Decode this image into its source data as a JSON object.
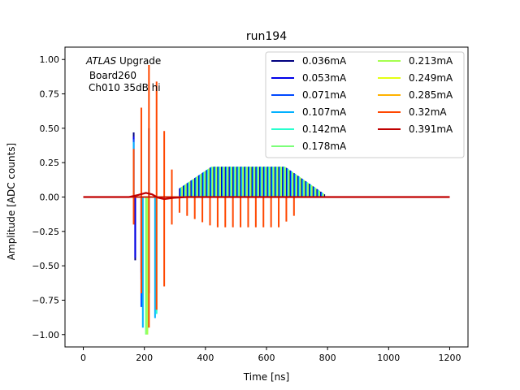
{
  "chart_data": {
    "type": "line",
    "title": "run194",
    "xlabel": "Time [ns]",
    "ylabel": "Amplitude [ADC counts]",
    "xlim": [
      -60,
      1260
    ],
    "ylim": [
      -1.09,
      1.09
    ],
    "xticks": [
      0,
      200,
      400,
      600,
      800,
      1000,
      1200
    ],
    "yticks": [
      -1.0,
      -0.75,
      -0.5,
      -0.25,
      0.0,
      0.25,
      0.5,
      0.75,
      1.0
    ],
    "xtick_labels": [
      "0",
      "200",
      "400",
      "600",
      "800",
      "1000",
      "1200"
    ],
    "ytick_labels": [
      "−1.00",
      "−0.75",
      "−0.50",
      "−0.25",
      "0.00",
      "0.25",
      "0.50",
      "0.75",
      "1.00"
    ],
    "annotation": {
      "line1_italic": "ATLAS",
      "line1_rest": " Upgrade",
      "line2": " Board260",
      "line3": "Ch010 35dB hi"
    },
    "legend": {
      "position": "top-right",
      "columns": 2
    },
    "pulse_train": {
      "period_ns": 25,
      "start_ns": 165,
      "end_ns": 790
    },
    "series": [
      {
        "name": "0.036mA",
        "color": "#00007f",
        "negative_spikes": [
          [
            170,
            -0.46
          ],
          [
            190,
            -0.55
          ]
        ],
        "positive_spikes": [
          [
            165,
            0.47
          ],
          [
            215,
            0.5
          ]
        ]
      },
      {
        "name": "0.053mA",
        "color": "#0000e8",
        "negative_spikes": [
          [
            170,
            -0.44
          ],
          [
            190,
            -0.6
          ]
        ],
        "positive_spikes": [
          [
            165,
            0.44
          ]
        ]
      },
      {
        "name": "0.071mA",
        "color": "#0049ff",
        "negative_spikes": [
          [
            190,
            -0.8
          ],
          [
            215,
            -0.7
          ]
        ],
        "positive_spikes": [
          [
            165,
            0.42
          ]
        ]
      },
      {
        "name": "0.107mA",
        "color": "#00b0ff",
        "negative_spikes": [
          [
            195,
            -0.95
          ],
          [
            235,
            -0.88
          ]
        ],
        "positive_spikes": [
          [
            165,
            0.4
          ]
        ]
      },
      {
        "name": "0.142mA",
        "color": "#28ffce",
        "negative_spikes": [
          [
            210,
            -0.98
          ],
          [
            240,
            -0.85
          ]
        ],
        "positive_spikes": []
      },
      {
        "name": "0.178mA",
        "color": "#7cff79",
        "negative_spikes": [
          [
            205,
            -1.0
          ]
        ],
        "positive_spikes": []
      },
      {
        "name": "0.213mA",
        "color": "#a6ff4f",
        "negative_spikes": [
          [
            210,
            -1.0
          ]
        ],
        "positive_spikes": []
      },
      {
        "name": "0.249mA",
        "color": "#e4ff13",
        "negative_spikes": [],
        "positive_spikes": []
      },
      {
        "name": "0.285mA",
        "color": "#ffb200",
        "negative_spikes": [],
        "positive_spikes": []
      },
      {
        "name": "0.32mA",
        "color": "#ff4700",
        "negative_spikes": [
          [
            165,
            -0.2
          ],
          [
            190,
            -0.7
          ],
          [
            215,
            -0.95
          ],
          [
            240,
            -0.82
          ],
          [
            265,
            -0.65
          ],
          [
            290,
            -0.2
          ]
        ],
        "positive_spikes": [
          [
            165,
            0.35
          ],
          [
            190,
            0.65
          ],
          [
            215,
            0.96
          ],
          [
            240,
            0.84
          ],
          [
            265,
            0.48
          ],
          [
            290,
            0.2
          ]
        ]
      },
      {
        "name": "0.391mA",
        "color": "#c00000",
        "negative_spikes": [],
        "positive_spikes": []
      }
    ]
  }
}
